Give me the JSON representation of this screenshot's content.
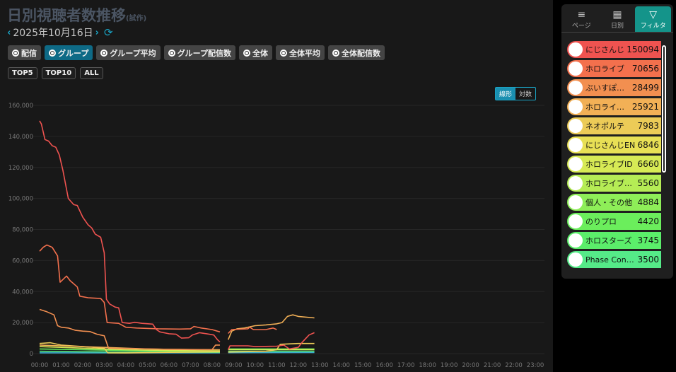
{
  "header": {
    "title": "日別視聴者数推移",
    "title_suffix": "(試作)",
    "date": "2025年10月16日",
    "prev": "‹",
    "next": "›",
    "refresh_icon": "refresh-icon"
  },
  "modes": [
    {
      "label": "配信",
      "active": false
    },
    {
      "label": "グループ",
      "active": true
    },
    {
      "label": "グループ平均",
      "active": false
    },
    {
      "label": "グループ配信数",
      "active": false
    },
    {
      "label": "全体",
      "active": false
    },
    {
      "label": "全体平均",
      "active": false
    },
    {
      "label": "全体配信数",
      "active": false
    }
  ],
  "tops": [
    "TOP5",
    "TOP10",
    "ALL"
  ],
  "scale": {
    "linear": "線形",
    "log": "対数",
    "selected": "linear"
  },
  "panel": {
    "tabs": [
      {
        "label": "ページ",
        "icon": "≡"
      },
      {
        "label": "日別",
        "icon": "▦"
      },
      {
        "label": "フィルタ",
        "icon": "▽",
        "active": true
      }
    ],
    "items": [
      {
        "name": "にじさんじ",
        "value": "150094",
        "color": "#ef5350"
      },
      {
        "name": "ホロライブ",
        "value": "70656",
        "color": "#f3704d"
      },
      {
        "name": "ぶいすぽっ！",
        "value": "28499",
        "color": "#f28f50"
      },
      {
        "name": "ホロライブEN",
        "value": "25921",
        "color": "#f2b056"
      },
      {
        "name": "ネオポルテ",
        "value": "7983",
        "color": "#eccb57"
      },
      {
        "name": "にじさんじEN",
        "value": "6846",
        "color": "#e8e055"
      },
      {
        "name": "ホロライブID",
        "value": "6660",
        "color": "#d7ea55"
      },
      {
        "name": "ホロライブDEV_IS",
        "value": "5560",
        "color": "#b5ec55"
      },
      {
        "name": "個人・その他",
        "value": "4884",
        "color": "#8eee58"
      },
      {
        "name": "のりプロ",
        "value": "4420",
        "color": "#6bee5c"
      },
      {
        "name": "ホロスターズ",
        "value": "3745",
        "color": "#5bee6a"
      },
      {
        "name": "Phase Connect",
        "value": "3500",
        "color": "#55ea88"
      }
    ]
  },
  "chart_data": {
    "type": "line",
    "xlabel": "",
    "ylabel": "",
    "ylim": [
      0,
      160000
    ],
    "xlim": [
      "00:00",
      "23:00"
    ],
    "grid": true,
    "yticks": [
      "0",
      "20,000",
      "40,000",
      "60,000",
      "80,000",
      "100,000",
      "120,000",
      "140,000",
      "160,000"
    ],
    "xticks": [
      "00:00",
      "01:00",
      "02:00",
      "03:00",
      "04:00",
      "05:00",
      "06:00",
      "07:00",
      "08:00",
      "09:00",
      "10:00",
      "11:00",
      "12:00",
      "13:00",
      "14:00",
      "15:00",
      "16:00",
      "17:00",
      "18:00",
      "19:00",
      "20:00",
      "21:00",
      "22:00",
      "23:00"
    ],
    "series": [
      {
        "color": "#ef5350",
        "points": [
          [
            "00:00",
            150000
          ],
          [
            "00:05",
            148000
          ],
          [
            "00:15",
            138000
          ],
          [
            "00:25",
            137000
          ],
          [
            "00:35",
            134000
          ],
          [
            "00:45",
            133000
          ],
          [
            "00:55",
            128000
          ],
          [
            "01:05",
            118000
          ],
          [
            "01:20",
            100000
          ],
          [
            "01:35",
            96000
          ],
          [
            "01:45",
            95500
          ],
          [
            "02:00",
            88000
          ],
          [
            "02:15",
            83000
          ],
          [
            "02:25",
            81000
          ],
          [
            "02:35",
            77000
          ],
          [
            "02:50",
            75000
          ],
          [
            "03:00",
            65000
          ],
          [
            "03:06",
            35000
          ],
          [
            "03:15",
            32000
          ],
          [
            "03:30",
            30000
          ],
          [
            "03:40",
            29500
          ],
          [
            "03:50",
            20000
          ],
          [
            "04:10",
            19500
          ],
          [
            "04:25",
            20200
          ],
          [
            "04:45",
            19500
          ],
          [
            "05:15",
            19000
          ],
          [
            "05:25",
            15500
          ],
          [
            "05:35",
            14000
          ],
          [
            "06:00",
            12800
          ],
          [
            "06:20",
            12500
          ],
          [
            "06:35",
            10000
          ],
          [
            "06:55",
            10200
          ],
          [
            "07:05",
            12000
          ],
          [
            "07:25",
            13500
          ],
          [
            "07:45",
            12800
          ],
          [
            "08:05",
            12000
          ],
          [
            "08:15",
            9000
          ],
          [
            "08:22",
            7500
          ],
          null,
          [
            "08:45",
            2500
          ],
          [
            "08:50",
            5000
          ],
          [
            "09:40",
            5000
          ],
          [
            "10:00",
            4500
          ],
          [
            "11:00",
            4800
          ],
          [
            "11:20",
            5500
          ],
          [
            "11:35",
            3000
          ],
          [
            "12:00",
            4000
          ],
          [
            "12:10",
            7000
          ],
          [
            "12:30",
            12000
          ],
          [
            "12:45",
            13500
          ]
        ]
      },
      {
        "color": "#f3704d",
        "points": [
          [
            "00:00",
            66000
          ],
          [
            "00:10",
            68500
          ],
          [
            "00:20",
            70000
          ],
          [
            "00:35",
            68500
          ],
          [
            "00:50",
            63000
          ],
          [
            "00:57",
            46000
          ],
          [
            "01:15",
            50000
          ],
          [
            "01:25",
            47000
          ],
          [
            "01:45",
            43000
          ],
          [
            "01:52",
            37000
          ],
          [
            "02:15",
            36000
          ],
          [
            "02:50",
            35500
          ],
          [
            "03:00",
            33000
          ],
          [
            "03:08",
            20000
          ],
          [
            "03:40",
            19500
          ],
          [
            "04:00",
            17000
          ],
          [
            "04:30",
            16500
          ],
          [
            "05:30",
            16000
          ],
          [
            "06:30",
            15800
          ],
          [
            "07:00",
            16000
          ],
          [
            "07:10",
            17500
          ],
          [
            "07:30",
            16500
          ],
          [
            "08:00",
            15500
          ],
          [
            "08:22",
            14000
          ],
          null,
          [
            "08:45",
            13000
          ],
          [
            "08:55",
            15500
          ],
          [
            "09:40",
            16000
          ],
          [
            "09:45",
            17000
          ],
          [
            "09:55",
            15500
          ],
          [
            "10:30",
            15500
          ],
          [
            "10:50",
            16500
          ],
          [
            "11:00",
            15500
          ]
        ]
      },
      {
        "color": "#f28f50",
        "points": [
          [
            "00:00",
            28500
          ],
          [
            "00:20",
            27000
          ],
          [
            "00:40",
            25000
          ],
          [
            "00:50",
            18000
          ],
          [
            "01:00",
            17000
          ],
          [
            "01:20",
            16500
          ],
          [
            "01:40",
            15000
          ],
          [
            "02:00",
            14500
          ],
          [
            "02:20",
            14200
          ],
          [
            "02:40",
            12500
          ],
          [
            "03:00",
            11500
          ],
          [
            "03:12",
            3500
          ],
          [
            "04:00",
            3200
          ],
          [
            "05:00",
            3000
          ],
          [
            "06:00",
            2800
          ],
          [
            "07:00",
            2600
          ],
          [
            "08:00",
            2500
          ],
          [
            "08:10",
            5500
          ],
          [
            "08:22",
            5500
          ]
        ]
      },
      {
        "color": "#f2b056",
        "points": [
          [
            "00:00",
            5500
          ],
          [
            "01:00",
            5000
          ],
          [
            "02:00",
            4500
          ],
          [
            "03:00",
            4000
          ],
          [
            "04:00",
            3500
          ],
          [
            "05:00",
            3000
          ],
          [
            "06:00",
            2800
          ],
          [
            "08:22",
            2500
          ],
          null,
          [
            "08:45",
            9000
          ],
          [
            "08:55",
            14500
          ],
          [
            "09:10",
            16000
          ],
          [
            "09:30",
            16500
          ],
          [
            "10:00",
            18000
          ],
          [
            "10:30",
            18500
          ],
          [
            "11:00",
            19200
          ],
          [
            "11:15",
            20000
          ],
          [
            "11:30",
            24000
          ],
          [
            "11:45",
            25000
          ],
          [
            "12:00",
            24000
          ],
          [
            "12:45",
            23000
          ]
        ]
      },
      {
        "color": "#eccb57",
        "points": [
          [
            "00:00",
            6500
          ],
          [
            "00:30",
            7000
          ],
          [
            "01:00",
            5500
          ],
          [
            "02:00",
            4500
          ],
          [
            "03:00",
            3500
          ],
          [
            "03:10",
            500
          ],
          [
            "04:00",
            400
          ],
          [
            "06:00",
            800
          ],
          [
            "08:22",
            1200
          ],
          null,
          [
            "08:45",
            1000
          ],
          [
            "10:30",
            1500
          ],
          [
            "11:00",
            2500
          ],
          [
            "11:10",
            6000
          ],
          [
            "12:00",
            6500
          ],
          [
            "12:45",
            6500
          ]
        ]
      },
      {
        "color": "#d7ea55",
        "points": [
          [
            "00:00",
            4500
          ],
          [
            "01:00",
            4000
          ],
          [
            "02:00",
            3500
          ],
          [
            "03:00",
            3000
          ],
          [
            "04:00",
            2500
          ],
          [
            "06:00",
            2000
          ],
          [
            "08:22",
            1800
          ],
          null,
          [
            "08:45",
            2500
          ],
          [
            "12:45",
            2500
          ]
        ]
      },
      {
        "color": "#6bee5c",
        "points": [
          [
            "00:00",
            3000
          ],
          [
            "02:00",
            2500
          ],
          [
            "04:00",
            2000
          ],
          [
            "06:00",
            1500
          ],
          [
            "08:22",
            1500
          ],
          null,
          [
            "08:45",
            3000
          ],
          [
            "12:45",
            3000
          ]
        ]
      },
      {
        "color": "#55ea88",
        "points": [
          [
            "00:00",
            1500
          ],
          [
            "02:00",
            1200
          ],
          [
            "04:00",
            1000
          ],
          [
            "08:22",
            800
          ],
          null,
          [
            "08:45",
            1500
          ],
          [
            "12:45",
            1500
          ]
        ]
      },
      {
        "color": "#3ab0d0",
        "points": [
          [
            "00:00",
            500
          ],
          [
            "08:22",
            500
          ],
          null,
          [
            "08:45",
            600
          ],
          [
            "12:45",
            700
          ]
        ]
      }
    ]
  }
}
